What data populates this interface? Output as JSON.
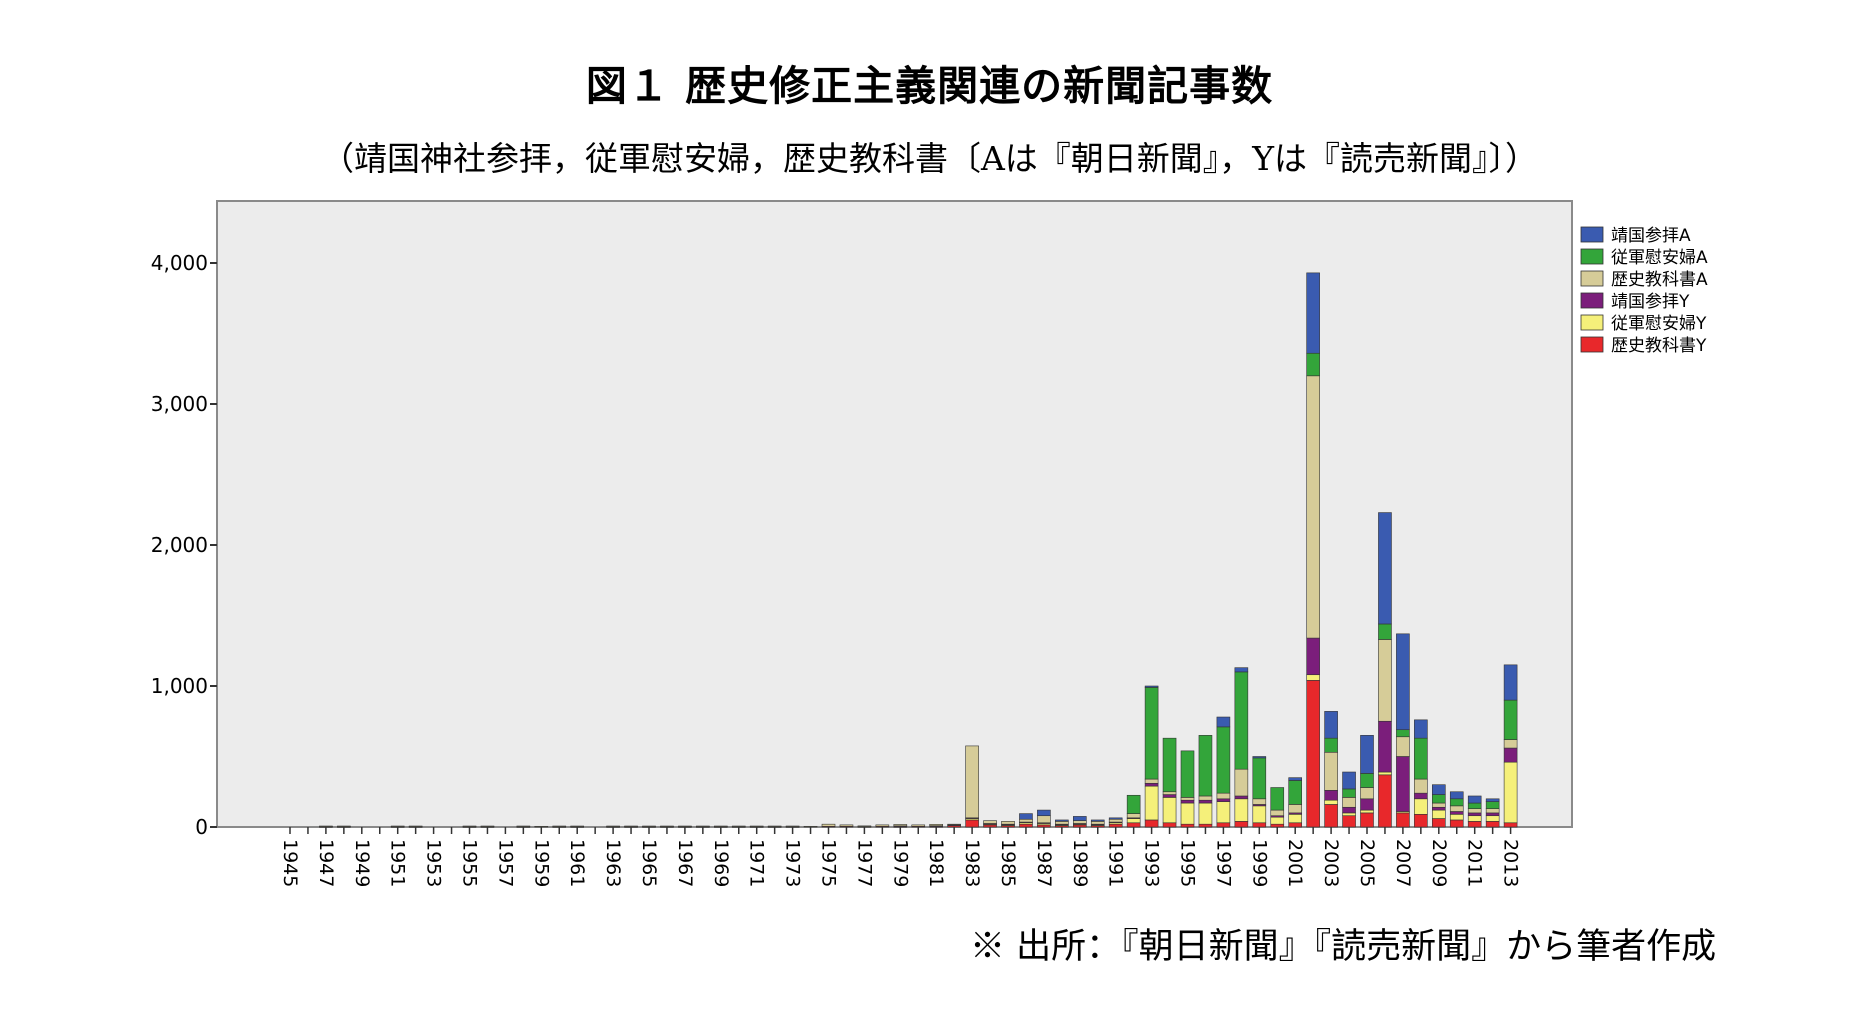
{
  "title": "図１ 歴史修正主義関連の新聞記事数",
  "subtitle": "（靖国神社参拝，従軍慰安婦，歴史教科書〔Aは『朝日新聞』，Yは『読売新聞』〕）",
  "source_note": "※ 出所：『朝日新聞』『読売新聞』から筆者作成",
  "chart_data": {
    "type": "bar",
    "stacked": true,
    "grid": false,
    "legend_position": "right",
    "plot_background": "#ececec",
    "ylim": [
      0,
      4400
    ],
    "yticks": [
      0,
      1000,
      2000,
      3000,
      4000
    ],
    "ytick_labels": [
      "0",
      "1,000",
      "2,000",
      "3,000",
      "4,000"
    ],
    "categories": [
      "1945",
      "1946",
      "1947",
      "1948",
      "1949",
      "1950",
      "1951",
      "1952",
      "1953",
      "1954",
      "1955",
      "1956",
      "1957",
      "1958",
      "1959",
      "1960",
      "1961",
      "1962",
      "1963",
      "1964",
      "1965",
      "1966",
      "1967",
      "1968",
      "1969",
      "1970",
      "1971",
      "1972",
      "1973",
      "1974",
      "1975",
      "1976",
      "1977",
      "1978",
      "1979",
      "1980",
      "1981",
      "1982",
      "1983",
      "1984",
      "1985",
      "1986",
      "1987",
      "1988",
      "1989",
      "1990",
      "1991",
      "1992",
      "1993",
      "1994",
      "1995",
      "1996",
      "1997",
      "1998",
      "1999",
      "2000",
      "2001",
      "2002",
      "2003",
      "2004",
      "2005",
      "2006",
      "2007",
      "2008",
      "2009",
      "2010",
      "2011",
      "2012",
      "2013"
    ],
    "xtick_labels": [
      "1945",
      "1947",
      "1949",
      "1951",
      "1953",
      "1955",
      "1957",
      "1959",
      "1961",
      "1963",
      "1965",
      "1967",
      "1969",
      "1971",
      "1973",
      "1975",
      "1977",
      "1979",
      "1981",
      "1983",
      "1985",
      "1987",
      "1989",
      "1991",
      "1993",
      "1995",
      "1997",
      "1999",
      "2001",
      "2003",
      "2005",
      "2007",
      "2009",
      "2011",
      "2013"
    ],
    "series": [
      {
        "name": "歴史教科書Y",
        "color": "#e8282b",
        "values": [
          0,
          0,
          2,
          2,
          0,
          0,
          2,
          2,
          0,
          0,
          2,
          2,
          0,
          2,
          0,
          2,
          2,
          0,
          2,
          2,
          2,
          2,
          2,
          2,
          2,
          2,
          2,
          2,
          2,
          0,
          5,
          5,
          3,
          5,
          3,
          5,
          4,
          10,
          50,
          15,
          10,
          20,
          15,
          10,
          15,
          10,
          20,
          30,
          50,
          30,
          20,
          20,
          30,
          40,
          30,
          20,
          30,
          1040,
          160,
          80,
          100,
          370,
          100,
          90,
          60,
          50,
          40,
          40,
          30
        ]
      },
      {
        "name": "従軍慰安婦Y",
        "color": "#f5f07a",
        "values": [
          0,
          0,
          0,
          0,
          0,
          0,
          0,
          0,
          0,
          0,
          0,
          0,
          0,
          0,
          0,
          0,
          0,
          0,
          0,
          0,
          0,
          0,
          0,
          0,
          0,
          0,
          0,
          0,
          0,
          0,
          0,
          0,
          0,
          0,
          0,
          0,
          0,
          0,
          10,
          5,
          5,
          10,
          10,
          5,
          5,
          5,
          10,
          30,
          240,
          180,
          150,
          150,
          150,
          160,
          120,
          50,
          60,
          40,
          30,
          20,
          20,
          20,
          10,
          110,
          60,
          40,
          40,
          40,
          430
        ]
      },
      {
        "name": "靖国参拝Y",
        "color": "#7b1e7b",
        "values": [
          0,
          0,
          0,
          0,
          0,
          0,
          0,
          0,
          0,
          0,
          0,
          0,
          0,
          0,
          0,
          0,
          0,
          0,
          0,
          0,
          0,
          0,
          0,
          0,
          0,
          0,
          0,
          0,
          0,
          0,
          0,
          0,
          0,
          0,
          5,
          0,
          5,
          5,
          5,
          5,
          5,
          5,
          5,
          5,
          5,
          5,
          5,
          5,
          20,
          20,
          20,
          20,
          20,
          20,
          10,
          10,
          10,
          260,
          70,
          40,
          80,
          360,
          390,
          40,
          20,
          20,
          20,
          20,
          100
        ]
      },
      {
        "name": "歴史教科書A",
        "color": "#d6cc98",
        "values": [
          0,
          0,
          5,
          5,
          0,
          0,
          5,
          5,
          0,
          0,
          5,
          5,
          0,
          5,
          5,
          5,
          5,
          0,
          5,
          5,
          5,
          5,
          5,
          5,
          5,
          5,
          5,
          5,
          5,
          5,
          15,
          10,
          5,
          10,
          10,
          10,
          10,
          5,
          510,
          20,
          20,
          20,
          50,
          20,
          20,
          20,
          20,
          30,
          30,
          20,
          20,
          30,
          40,
          190,
          40,
          40,
          60,
          1860,
          270,
          70,
          80,
          580,
          140,
          100,
          30,
          40,
          30,
          30,
          60
        ]
      },
      {
        "name": "従軍慰安婦A",
        "color": "#33a53a",
        "values": [
          0,
          0,
          0,
          0,
          0,
          0,
          0,
          0,
          0,
          0,
          0,
          0,
          0,
          0,
          0,
          0,
          0,
          0,
          0,
          0,
          0,
          0,
          0,
          0,
          0,
          0,
          0,
          0,
          0,
          0,
          0,
          0,
          0,
          0,
          0,
          0,
          0,
          0,
          0,
          0,
          0,
          0,
          0,
          0,
          0,
          0,
          0,
          130,
          650,
          380,
          330,
          430,
          470,
          690,
          290,
          160,
          170,
          160,
          100,
          60,
          100,
          110,
          50,
          290,
          60,
          50,
          40,
          50,
          280
        ]
      },
      {
        "name": "靖国参拝A",
        "color": "#3a5bb0",
        "values": [
          0,
          0,
          0,
          0,
          0,
          0,
          0,
          0,
          0,
          0,
          0,
          0,
          0,
          0,
          0,
          0,
          0,
          0,
          0,
          0,
          0,
          0,
          0,
          0,
          0,
          0,
          0,
          0,
          0,
          0,
          0,
          0,
          0,
          0,
          0,
          0,
          0,
          0,
          0,
          0,
          0,
          40,
          40,
          10,
          30,
          10,
          10,
          0,
          10,
          0,
          0,
          0,
          70,
          30,
          10,
          0,
          20,
          570,
          190,
          120,
          270,
          790,
          680,
          130,
          70,
          50,
          50,
          20,
          250
        ]
      }
    ]
  }
}
